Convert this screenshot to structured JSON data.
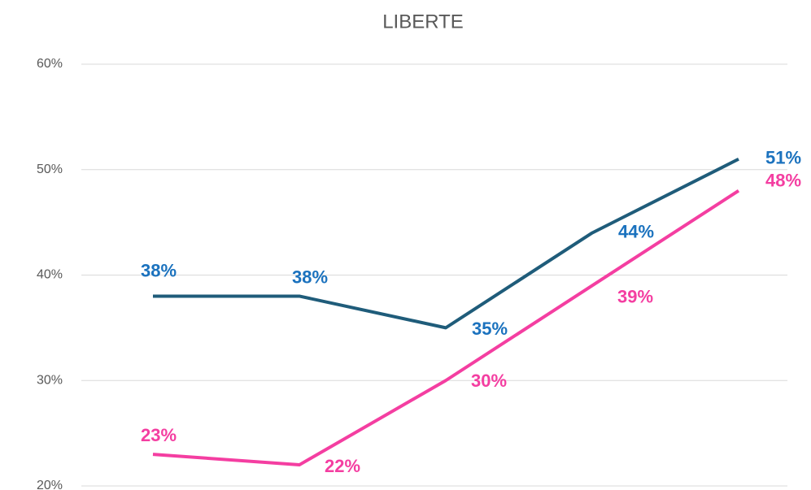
{
  "chart_data": {
    "type": "line",
    "title": "LIBERTE",
    "categories": [
      null,
      null,
      null,
      null,
      null
    ],
    "series": [
      {
        "color": "#1f5c7a",
        "label_color": "#1b72be",
        "values": [
          38,
          38,
          35,
          44,
          51
        ],
        "value_labels": [
          "38%",
          "38%",
          "35%",
          "44%",
          "51%"
        ]
      },
      {
        "color": "#f43ea1",
        "label_color": "#f43ea1",
        "values": [
          23,
          22,
          30,
          39,
          48
        ],
        "value_labels": [
          "23%",
          "22%",
          "30%",
          "39%",
          "48%"
        ]
      }
    ],
    "ylim": [
      20,
      60
    ],
    "yticks": [
      {
        "value": 20,
        "label": "20%"
      },
      {
        "value": 30,
        "label": "30%"
      },
      {
        "value": 40,
        "label": "40%"
      },
      {
        "value": 50,
        "label": "50%"
      },
      {
        "value": 60,
        "label": "60%"
      }
    ],
    "grid": true
  }
}
